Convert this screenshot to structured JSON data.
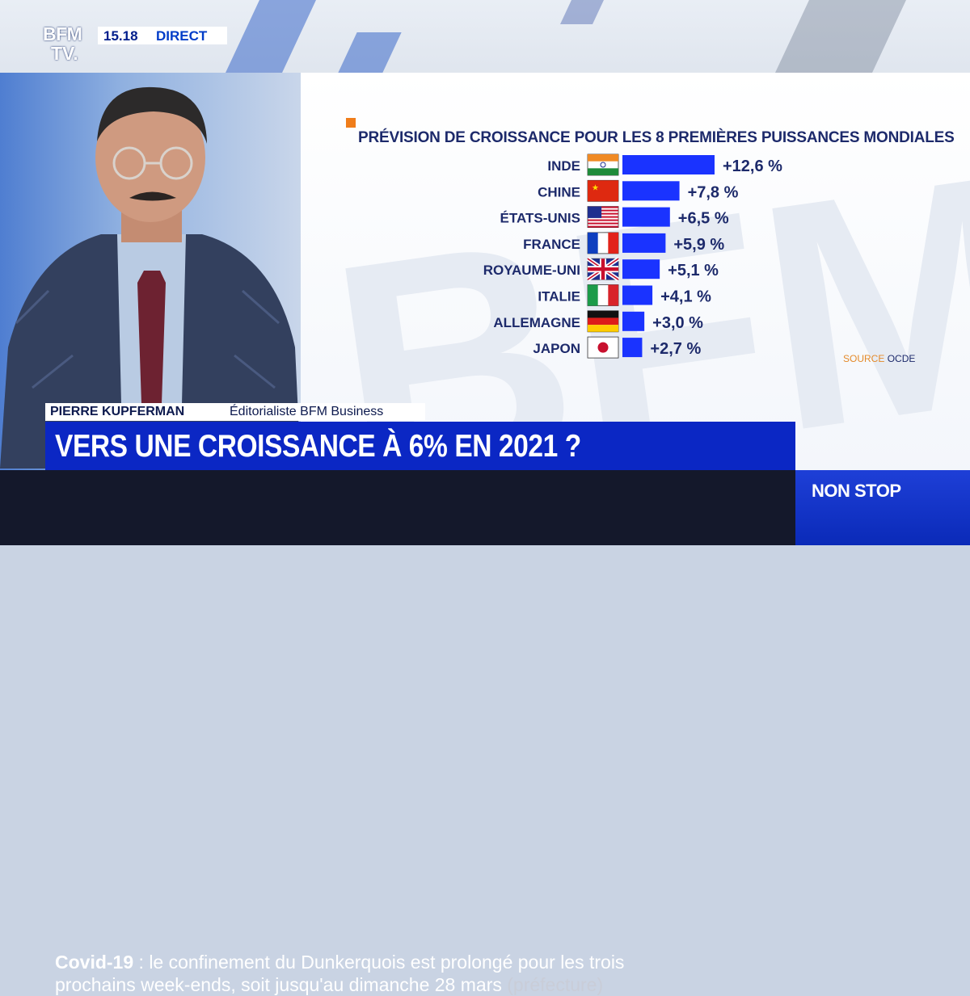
{
  "channel": {
    "logo_line1": "BFM",
    "logo_line2": "TV.",
    "time": "15.18",
    "live_label": "DIRECT"
  },
  "chart_data": {
    "type": "bar",
    "orientation": "horizontal",
    "title": "PRÉVISION DE CROISSANCE POUR LES 8 PREMIÈRES PUISSANCES MONDIALES",
    "categories": [
      "INDE",
      "CHINE",
      "ÉTATS-UNIS",
      "FRANCE",
      "ROYAUME-UNI",
      "ITALIE",
      "ALLEMAGNE",
      "JAPON"
    ],
    "values": [
      12.6,
      7.8,
      6.5,
      5.9,
      5.1,
      4.1,
      3.0,
      2.7
    ],
    "labels": [
      "+12,6 %",
      "+7,8 %",
      "+6,5 %",
      "+5,9 %",
      "+5,1 %",
      "+4,1 %",
      "+3,0 %",
      "+2,7 %"
    ],
    "flags": [
      "india-flag-icon",
      "china-flag-icon",
      "usa-flag-icon",
      "france-flag-icon",
      "uk-flag-icon",
      "italy-flag-icon",
      "germany-flag-icon",
      "japan-flag-icon"
    ],
    "xlim": [
      0,
      12.6
    ],
    "bar_color": "#1a33ff"
  },
  "source": {
    "label": "SOURCE",
    "value": "OCDE"
  },
  "name_strap": {
    "name": "PIERRE KUPFERMAN",
    "title": "Éditorialiste BFM Business"
  },
  "headline": "VERS UNE CROISSANCE À 6% EN 2021 ?",
  "ticker": {
    "tag": "Covid-19",
    "separator": " : ",
    "line1": "le confinement du Dunkerquois est prolongé pour les trois",
    "line2": "prochains week-ends, soit jusqu'au dimanche 28 mars",
    "source": "(préfecture)"
  },
  "nonstop_label": "NON STOP",
  "colors": {
    "headline_bg": "#0b27c4",
    "accent_orange": "#f07d1a",
    "text_navy": "#1d2a6b"
  }
}
